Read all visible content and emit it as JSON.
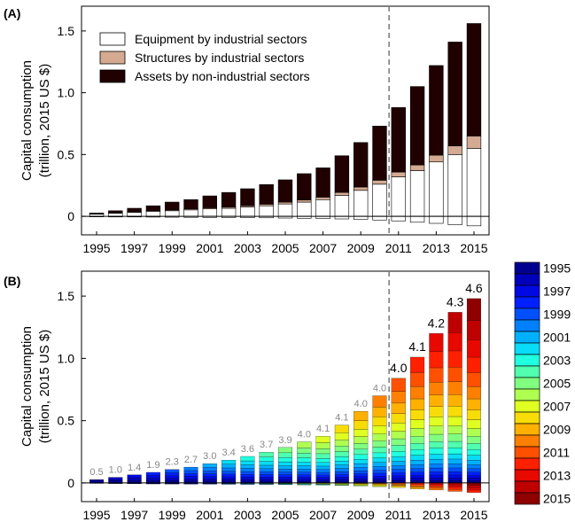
{
  "chart_data": [
    {
      "panel_label": "(A)",
      "type": "bar",
      "stacked": true,
      "ylabel_lines": [
        "Capital consumption",
        "(trillion, 2015 US $)"
      ],
      "ylim": [
        -0.15,
        1.7
      ],
      "yticks": [
        0,
        0.5,
        1.0,
        1.5
      ],
      "ytick_labels": [
        "0",
        "0.5",
        "1.0",
        "1.5"
      ],
      "categories": [
        1995,
        1996,
        1997,
        1998,
        1999,
        2000,
        2001,
        2002,
        2003,
        2004,
        2005,
        2006,
        2007,
        2008,
        2009,
        2010,
        2011,
        2012,
        2013,
        2014,
        2015
      ],
      "xtick_labels": [
        "1995",
        "1997",
        "1999",
        "2001",
        "2003",
        "2005",
        "2007",
        "2009",
        "2011",
        "2013",
        "2015"
      ],
      "reference_line_between": [
        2010,
        2011
      ],
      "legend_position": "top-left",
      "series": [
        {
          "name": "Equipment by industrial sectors",
          "color": "#ffffff",
          "values": [
            0.018,
            0.025,
            0.032,
            0.04,
            0.045,
            0.052,
            0.06,
            0.065,
            0.075,
            0.085,
            0.1,
            0.115,
            0.135,
            0.17,
            0.21,
            0.26,
            0.32,
            0.37,
            0.44,
            0.5,
            0.55
          ]
        },
        {
          "name": "Structures by industrial sectors",
          "color": "#d4aa92",
          "values": [
            0.003,
            0.004,
            0.005,
            0.006,
            0.007,
            0.008,
            0.009,
            0.01,
            0.011,
            0.013,
            0.015,
            0.017,
            0.02,
            0.023,
            0.027,
            0.032,
            0.038,
            0.045,
            0.055,
            0.07,
            0.1
          ]
        },
        {
          "name": "Assets by non-industrial sectors",
          "color": "#200000",
          "values": [
            0.006,
            0.016,
            0.028,
            0.039,
            0.063,
            0.075,
            0.096,
            0.118,
            0.137,
            0.159,
            0.18,
            0.213,
            0.237,
            0.297,
            0.36,
            0.438,
            0.522,
            0.635,
            0.725,
            0.84,
            0.91
          ]
        },
        {
          "name": "",
          "color": "#ffffff",
          "values": [
            -0.004,
            -0.005,
            -0.005,
            -0.006,
            -0.007,
            -0.008,
            -0.009,
            -0.01,
            -0.011,
            -0.012,
            -0.014,
            -0.016,
            -0.018,
            -0.021,
            -0.025,
            -0.03,
            -0.037,
            -0.048,
            -0.057,
            -0.068,
            -0.077
          ]
        }
      ]
    },
    {
      "panel_label": "(B)",
      "type": "bar",
      "stacked": true,
      "ylabel_lines": [
        "Capital consumption",
        "(trillion, 2015 US $)"
      ],
      "ylim": [
        -0.15,
        1.7
      ],
      "yticks": [
        0,
        0.5,
        1.0,
        1.5
      ],
      "ytick_labels": [
        "0",
        "0.5",
        "1.0",
        "1.5"
      ],
      "categories": [
        1995,
        1996,
        1997,
        1998,
        1999,
        2000,
        2001,
        2002,
        2003,
        2004,
        2005,
        2006,
        2007,
        2008,
        2009,
        2010,
        2011,
        2012,
        2013,
        2014,
        2015
      ],
      "xtick_labels": [
        "1995",
        "1997",
        "1999",
        "2001",
        "2003",
        "2005",
        "2007",
        "2009",
        "2011",
        "2013",
        "2015"
      ],
      "reference_line_between": [
        2010,
        2011
      ],
      "totals": [
        0.027,
        0.045,
        0.065,
        0.085,
        0.108,
        0.127,
        0.155,
        0.183,
        0.213,
        0.247,
        0.285,
        0.33,
        0.375,
        0.465,
        0.575,
        0.7,
        0.84,
        1.01,
        1.2,
        1.37,
        1.48
      ],
      "negatives": [
        -0.004,
        -0.005,
        -0.005,
        -0.006,
        -0.007,
        -0.008,
        -0.009,
        -0.01,
        -0.011,
        -0.012,
        -0.014,
        -0.016,
        -0.018,
        -0.021,
        -0.025,
        -0.03,
        -0.037,
        -0.048,
        -0.057,
        -0.068,
        -0.077
      ],
      "bar_labels": [
        "0.5",
        "1.0",
        "1.4",
        "1.9",
        "2.3",
        "2.7",
        "3.0",
        "3.4",
        "3.6",
        "3.7",
        "3.9",
        "4.0",
        "4.1",
        "4.1",
        "4.0",
        "4.0",
        "4.0",
        "4.1",
        "4.2",
        "4.3",
        "4.6"
      ],
      "bar_label_colors": {
        "before_2011": "#888888",
        "from_2011": "#000000"
      },
      "legend_position": "right",
      "vintage_legend": [
        "1995",
        "1997",
        "1999",
        "2001",
        "2003",
        "2005",
        "2007",
        "2009",
        "2011",
        "2013",
        "2015"
      ],
      "vintage_colors": [
        "#00008f",
        "#0000c8",
        "#0010ff",
        "#0050ff",
        "#0090ff",
        "#00d0ff",
        "#20ffdf",
        "#60ff9f",
        "#9fff60",
        "#dfff20",
        "#ffd000",
        "#ff9000",
        "#ff5000",
        "#ff1000",
        "#cf0000",
        "#8f0000"
      ]
    }
  ]
}
